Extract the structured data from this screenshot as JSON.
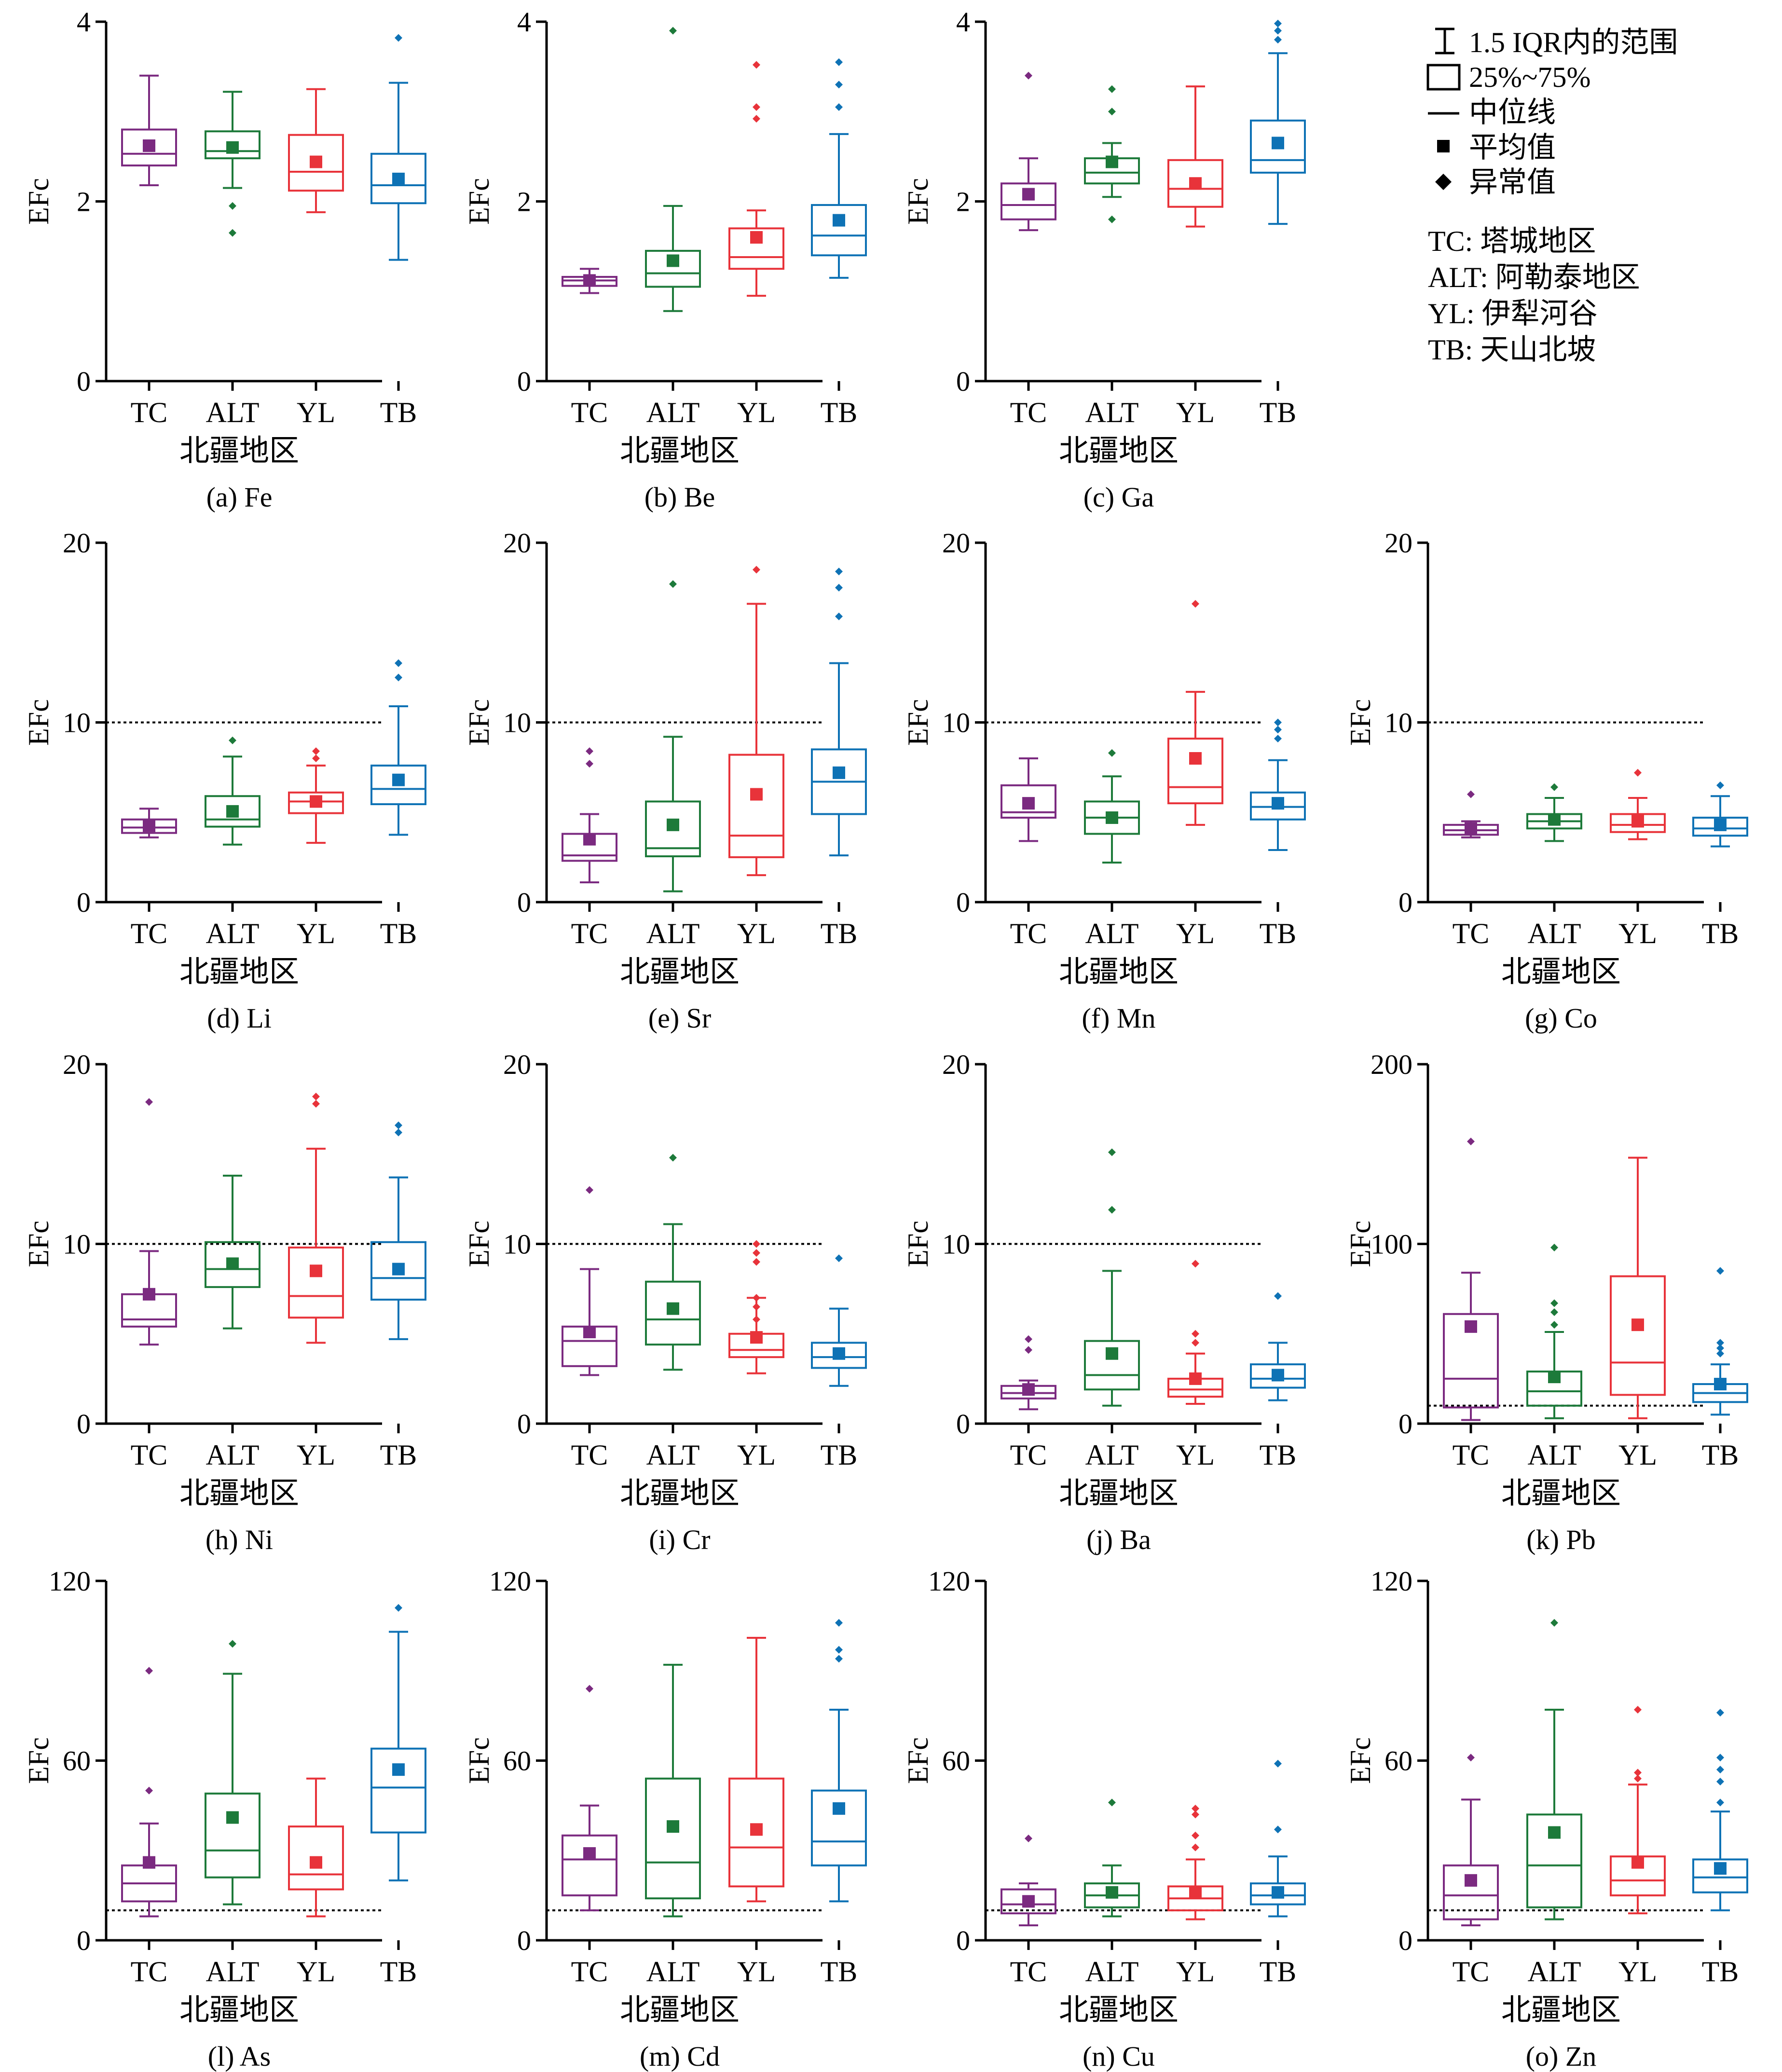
{
  "legend": {
    "whisker_label": "1.5 IQR内的范围",
    "box_label": "25%~75%",
    "median_label": "中位线",
    "mean_label": "平均值",
    "outlier_label": "异常值",
    "region_notes": [
      "TC: 塔城地区",
      "ALT: 阿勒泰地区",
      "YL: 伊犁河谷",
      "TB: 天山北坡"
    ]
  },
  "colors": {
    "TC": "#7b2a80",
    "ALT": "#1d7a3a",
    "YL": "#e8333a",
    "TB": "#0e72b5"
  },
  "chart_data": [
    {
      "type": "box",
      "caption": "(a) Fe",
      "xlabel": "北疆地区",
      "ylabel": "EFc",
      "ylim": [
        0,
        4
      ],
      "yticks": [
        0,
        2,
        4
      ],
      "reference_line": null,
      "categories": [
        "TC",
        "ALT",
        "YL",
        "TB"
      ],
      "boxes": [
        {
          "whisker_low": 2.18,
          "q1": 2.4,
          "median": 2.53,
          "q3": 2.8,
          "whisker_high": 3.4,
          "mean": 2.62,
          "outliers": []
        },
        {
          "whisker_low": 2.15,
          "q1": 2.48,
          "median": 2.56,
          "q3": 2.78,
          "whisker_high": 3.22,
          "mean": 2.6,
          "outliers": [
            1.95,
            1.65
          ]
        },
        {
          "whisker_low": 1.88,
          "q1": 2.12,
          "median": 2.33,
          "q3": 2.74,
          "whisker_high": 3.25,
          "mean": 2.44,
          "outliers": []
        },
        {
          "whisker_low": 1.35,
          "q1": 1.98,
          "median": 2.18,
          "q3": 2.53,
          "whisker_high": 3.32,
          "mean": 2.25,
          "outliers": [
            3.82
          ]
        }
      ]
    },
    {
      "type": "box",
      "caption": "(b) Be",
      "xlabel": "北疆地区",
      "ylabel": "EFc",
      "ylim": [
        0,
        4
      ],
      "yticks": [
        0,
        2,
        4
      ],
      "reference_line": null,
      "categories": [
        "TC",
        "ALT",
        "YL",
        "TB"
      ],
      "boxes": [
        {
          "whisker_low": 0.98,
          "q1": 1.06,
          "median": 1.12,
          "q3": 1.16,
          "whisker_high": 1.25,
          "mean": 1.12,
          "outliers": []
        },
        {
          "whisker_low": 0.78,
          "q1": 1.05,
          "median": 1.2,
          "q3": 1.45,
          "whisker_high": 1.95,
          "mean": 1.34,
          "outliers": [
            3.9
          ]
        },
        {
          "whisker_low": 0.95,
          "q1": 1.25,
          "median": 1.38,
          "q3": 1.7,
          "whisker_high": 1.9,
          "mean": 1.6,
          "outliers": [
            3.52,
            3.05,
            2.92
          ]
        },
        {
          "whisker_low": 1.15,
          "q1": 1.4,
          "median": 1.62,
          "q3": 1.96,
          "whisker_high": 2.75,
          "mean": 1.79,
          "outliers": [
            3.55,
            3.3,
            3.05
          ]
        }
      ]
    },
    {
      "type": "box",
      "caption": "(c) Ga",
      "xlabel": "北疆地区",
      "ylabel": "EFc",
      "ylim": [
        0,
        4
      ],
      "yticks": [
        0,
        2,
        4
      ],
      "reference_line": null,
      "categories": [
        "TC",
        "ALT",
        "YL",
        "TB"
      ],
      "boxes": [
        {
          "whisker_low": 1.68,
          "q1": 1.8,
          "median": 1.96,
          "q3": 2.2,
          "whisker_high": 2.48,
          "mean": 2.08,
          "outliers": [
            3.4
          ]
        },
        {
          "whisker_low": 2.05,
          "q1": 2.2,
          "median": 2.32,
          "q3": 2.48,
          "whisker_high": 2.65,
          "mean": 2.44,
          "outliers": [
            3.25,
            3.0,
            1.8
          ]
        },
        {
          "whisker_low": 1.72,
          "q1": 1.94,
          "median": 2.14,
          "q3": 2.46,
          "whisker_high": 3.28,
          "mean": 2.2,
          "outliers": []
        },
        {
          "whisker_low": 1.75,
          "q1": 2.32,
          "median": 2.46,
          "q3": 2.9,
          "whisker_high": 3.65,
          "mean": 2.65,
          "outliers": [
            3.98,
            3.9,
            3.8
          ]
        }
      ]
    },
    {
      "type": "box",
      "caption": "(d) Li",
      "xlabel": "北疆地区",
      "ylabel": "EFc",
      "ylim": [
        0,
        20
      ],
      "yticks": [
        0,
        10,
        20
      ],
      "reference_line": 10,
      "categories": [
        "TC",
        "ALT",
        "YL",
        "TB"
      ],
      "boxes": [
        {
          "whisker_low": 3.6,
          "q1": 3.85,
          "median": 4.15,
          "q3": 4.6,
          "whisker_high": 5.2,
          "mean": 4.25,
          "outliers": []
        },
        {
          "whisker_low": 3.2,
          "q1": 4.2,
          "median": 4.6,
          "q3": 5.9,
          "whisker_high": 8.1,
          "mean": 5.05,
          "outliers": [
            9.0
          ]
        },
        {
          "whisker_low": 3.3,
          "q1": 4.95,
          "median": 5.6,
          "q3": 6.1,
          "whisker_high": 7.6,
          "mean": 5.6,
          "outliers": [
            8.4,
            8.0
          ]
        },
        {
          "whisker_low": 3.75,
          "q1": 5.45,
          "median": 6.3,
          "q3": 7.6,
          "whisker_high": 10.9,
          "mean": 6.8,
          "outliers": [
            13.3,
            12.5
          ]
        }
      ]
    },
    {
      "type": "box",
      "caption": "(e) Sr",
      "xlabel": "北疆地区",
      "ylabel": "EFc",
      "ylim": [
        0,
        20
      ],
      "yticks": [
        0,
        10,
        20
      ],
      "reference_line": 10,
      "categories": [
        "TC",
        "ALT",
        "YL",
        "TB"
      ],
      "boxes": [
        {
          "whisker_low": 1.1,
          "q1": 2.3,
          "median": 2.6,
          "q3": 3.8,
          "whisker_high": 4.9,
          "mean": 3.5,
          "outliers": [
            8.4,
            7.7
          ]
        },
        {
          "whisker_low": 0.6,
          "q1": 2.55,
          "median": 3.0,
          "q3": 5.6,
          "whisker_high": 9.2,
          "mean": 4.3,
          "outliers": [
            17.7
          ]
        },
        {
          "whisker_low": 1.5,
          "q1": 2.5,
          "median": 3.7,
          "q3": 8.2,
          "whisker_high": 16.6,
          "mean": 6.0,
          "outliers": [
            18.5
          ]
        },
        {
          "whisker_low": 2.6,
          "q1": 4.9,
          "median": 6.7,
          "q3": 8.5,
          "whisker_high": 13.3,
          "mean": 7.2,
          "outliers": [
            18.4,
            17.5,
            15.9
          ]
        }
      ]
    },
    {
      "type": "box",
      "caption": "(f) Mn",
      "xlabel": "北疆地区",
      "ylabel": "EFc",
      "ylim": [
        0,
        20
      ],
      "yticks": [
        0,
        10,
        20
      ],
      "reference_line": 10,
      "categories": [
        "TC",
        "ALT",
        "YL",
        "TB"
      ],
      "boxes": [
        {
          "whisker_low": 3.4,
          "q1": 4.7,
          "median": 5.0,
          "q3": 6.5,
          "whisker_high": 8.0,
          "mean": 5.5,
          "outliers": []
        },
        {
          "whisker_low": 2.2,
          "q1": 3.8,
          "median": 4.7,
          "q3": 5.6,
          "whisker_high": 7.0,
          "mean": 4.7,
          "outliers": [
            8.3
          ]
        },
        {
          "whisker_low": 4.3,
          "q1": 5.5,
          "median": 6.4,
          "q3": 9.1,
          "whisker_high": 11.7,
          "mean": 8.0,
          "outliers": [
            16.6
          ]
        },
        {
          "whisker_low": 2.9,
          "q1": 4.6,
          "median": 5.3,
          "q3": 6.1,
          "whisker_high": 7.9,
          "mean": 5.5,
          "outliers": [
            10.0,
            9.6,
            9.1
          ]
        }
      ]
    },
    {
      "type": "box",
      "caption": "(g) Co",
      "xlabel": "北疆地区",
      "ylabel": "EFc",
      "ylim": [
        0,
        20
      ],
      "yticks": [
        0,
        10,
        20
      ],
      "reference_line": 10,
      "categories": [
        "TC",
        "ALT",
        "YL",
        "TB"
      ],
      "boxes": [
        {
          "whisker_low": 3.6,
          "q1": 3.75,
          "median": 4.0,
          "q3": 4.3,
          "whisker_high": 4.5,
          "mean": 4.1,
          "outliers": [
            6.0
          ]
        },
        {
          "whisker_low": 3.4,
          "q1": 4.1,
          "median": 4.5,
          "q3": 4.9,
          "whisker_high": 5.8,
          "mean": 4.6,
          "outliers": [
            6.4
          ]
        },
        {
          "whisker_low": 3.5,
          "q1": 3.9,
          "median": 4.3,
          "q3": 4.9,
          "whisker_high": 5.8,
          "mean": 4.5,
          "outliers": [
            7.2
          ]
        },
        {
          "whisker_low": 3.1,
          "q1": 3.7,
          "median": 4.1,
          "q3": 4.7,
          "whisker_high": 5.9,
          "mean": 4.3,
          "outliers": [
            6.5
          ]
        }
      ]
    },
    {
      "type": "box",
      "caption": "(h) Ni",
      "xlabel": "北疆地区",
      "ylabel": "EFc",
      "ylim": [
        0,
        20
      ],
      "yticks": [
        0,
        10,
        20
      ],
      "reference_line": 10,
      "categories": [
        "TC",
        "ALT",
        "YL",
        "TB"
      ],
      "boxes": [
        {
          "whisker_low": 4.4,
          "q1": 5.4,
          "median": 5.8,
          "q3": 7.2,
          "whisker_high": 9.6,
          "mean": 7.2,
          "outliers": [
            17.9
          ]
        },
        {
          "whisker_low": 5.3,
          "q1": 7.6,
          "median": 8.6,
          "q3": 10.1,
          "whisker_high": 13.8,
          "mean": 8.9,
          "outliers": []
        },
        {
          "whisker_low": 4.5,
          "q1": 5.9,
          "median": 7.1,
          "q3": 9.8,
          "whisker_high": 15.3,
          "mean": 8.5,
          "outliers": [
            18.2,
            17.8
          ]
        },
        {
          "whisker_low": 4.7,
          "q1": 6.9,
          "median": 8.1,
          "q3": 10.1,
          "whisker_high": 13.7,
          "mean": 8.6,
          "outliers": [
            16.6,
            16.2
          ]
        }
      ]
    },
    {
      "type": "box",
      "caption": "(i) Cr",
      "xlabel": "北疆地区",
      "ylabel": "EFc",
      "ylim": [
        0,
        20
      ],
      "yticks": [
        0,
        10,
        20
      ],
      "reference_line": 10,
      "categories": [
        "TC",
        "ALT",
        "YL",
        "TB"
      ],
      "boxes": [
        {
          "whisker_low": 2.7,
          "q1": 3.2,
          "median": 4.6,
          "q3": 5.4,
          "whisker_high": 8.6,
          "mean": 5.1,
          "outliers": [
            13.0
          ]
        },
        {
          "whisker_low": 3.0,
          "q1": 4.4,
          "median": 5.8,
          "q3": 7.9,
          "whisker_high": 11.1,
          "mean": 6.4,
          "outliers": [
            14.8
          ]
        },
        {
          "whisker_low": 2.8,
          "q1": 3.7,
          "median": 4.1,
          "q3": 5.0,
          "whisker_high": 7.0,
          "mean": 4.8,
          "outliers": [
            10.0,
            9.5,
            9.0,
            7.0,
            6.5,
            5.8
          ]
        },
        {
          "whisker_low": 2.1,
          "q1": 3.1,
          "median": 3.7,
          "q3": 4.5,
          "whisker_high": 6.4,
          "mean": 3.9,
          "outliers": [
            9.2
          ]
        }
      ]
    },
    {
      "type": "box",
      "caption": "(j) Ba",
      "xlabel": "北疆地区",
      "ylabel": "EFc",
      "ylim": [
        0,
        20
      ],
      "yticks": [
        0,
        10,
        20
      ],
      "reference_line": 10,
      "categories": [
        "TC",
        "ALT",
        "YL",
        "TB"
      ],
      "boxes": [
        {
          "whisker_low": 0.8,
          "q1": 1.4,
          "median": 1.7,
          "q3": 2.1,
          "whisker_high": 2.4,
          "mean": 1.9,
          "outliers": [
            4.7,
            4.1
          ]
        },
        {
          "whisker_low": 1.0,
          "q1": 1.9,
          "median": 2.7,
          "q3": 4.6,
          "whisker_high": 8.5,
          "mean": 3.9,
          "outliers": [
            15.1,
            11.9
          ]
        },
        {
          "whisker_low": 1.1,
          "q1": 1.5,
          "median": 1.9,
          "q3": 2.5,
          "whisker_high": 3.9,
          "mean": 2.5,
          "outliers": [
            8.9,
            5.0,
            4.5
          ]
        },
        {
          "whisker_low": 1.3,
          "q1": 2.0,
          "median": 2.5,
          "q3": 3.3,
          "whisker_high": 4.5,
          "mean": 2.7,
          "outliers": [
            7.1
          ]
        }
      ]
    },
    {
      "type": "box",
      "caption": "(k) Pb",
      "xlabel": "北疆地区",
      "ylabel": "EFc",
      "ylim": [
        0,
        200
      ],
      "yticks": [
        0,
        100,
        200
      ],
      "reference_line": 10,
      "categories": [
        "TC",
        "ALT",
        "YL",
        "TB"
      ],
      "boxes": [
        {
          "whisker_low": 2,
          "q1": 9,
          "median": 25,
          "q3": 61,
          "whisker_high": 84,
          "mean": 54,
          "outliers": [
            157
          ]
        },
        {
          "whisker_low": 3,
          "q1": 10,
          "median": 18,
          "q3": 29,
          "whisker_high": 51,
          "mean": 26,
          "outliers": [
            98,
            67,
            62,
            55
          ]
        },
        {
          "whisker_low": 3,
          "q1": 16,
          "median": 34,
          "q3": 82,
          "whisker_high": 148,
          "mean": 55,
          "outliers": []
        },
        {
          "whisker_low": 5,
          "q1": 12,
          "median": 17,
          "q3": 22,
          "whisker_high": 33,
          "mean": 22,
          "outliers": [
            85,
            45,
            42,
            39
          ]
        }
      ]
    },
    {
      "type": "box",
      "caption": "(l) As",
      "xlabel": "北疆地区",
      "ylabel": "EFc",
      "ylim": [
        0,
        120
      ],
      "yticks": [
        0,
        60,
        120
      ],
      "reference_line": 10,
      "categories": [
        "TC",
        "ALT",
        "YL",
        "TB"
      ],
      "boxes": [
        {
          "whisker_low": 8,
          "q1": 13,
          "median": 19,
          "q3": 25,
          "whisker_high": 39,
          "mean": 26,
          "outliers": [
            90,
            50
          ]
        },
        {
          "whisker_low": 12,
          "q1": 21,
          "median": 30,
          "q3": 49,
          "whisker_high": 89,
          "mean": 41,
          "outliers": [
            99
          ]
        },
        {
          "whisker_low": 8,
          "q1": 17,
          "median": 22,
          "q3": 38,
          "whisker_high": 54,
          "mean": 26,
          "outliers": []
        },
        {
          "whisker_low": 20,
          "q1": 36,
          "median": 51,
          "q3": 64,
          "whisker_high": 103,
          "mean": 57,
          "outliers": [
            111
          ]
        }
      ]
    },
    {
      "type": "box",
      "caption": "(m) Cd",
      "xlabel": "北疆地区",
      "ylabel": "EFc",
      "ylim": [
        0,
        120
      ],
      "yticks": [
        0,
        60,
        120
      ],
      "reference_line": 10,
      "categories": [
        "TC",
        "ALT",
        "YL",
        "TB"
      ],
      "boxes": [
        {
          "whisker_low": 10,
          "q1": 15,
          "median": 27,
          "q3": 35,
          "whisker_high": 45,
          "mean": 29,
          "outliers": [
            84
          ]
        },
        {
          "whisker_low": 8,
          "q1": 14,
          "median": 26,
          "q3": 54,
          "whisker_high": 92,
          "mean": 38,
          "outliers": []
        },
        {
          "whisker_low": 13,
          "q1": 18,
          "median": 31,
          "q3": 54,
          "whisker_high": 101,
          "mean": 37,
          "outliers": []
        },
        {
          "whisker_low": 13,
          "q1": 25,
          "median": 33,
          "q3": 50,
          "whisker_high": 77,
          "mean": 44,
          "outliers": [
            106,
            97,
            94
          ]
        }
      ]
    },
    {
      "type": "box",
      "caption": "(n) Cu",
      "xlabel": "北疆地区",
      "ylabel": "EFc",
      "ylim": [
        0,
        120
      ],
      "yticks": [
        0,
        60,
        120
      ],
      "reference_line": 10,
      "categories": [
        "TC",
        "ALT",
        "YL",
        "TB"
      ],
      "boxes": [
        {
          "whisker_low": 5,
          "q1": 9,
          "median": 12,
          "q3": 17,
          "whisker_high": 19,
          "mean": 13,
          "outliers": [
            34
          ]
        },
        {
          "whisker_low": 8,
          "q1": 11,
          "median": 15,
          "q3": 19,
          "whisker_high": 25,
          "mean": 16,
          "outliers": [
            46
          ]
        },
        {
          "whisker_low": 7,
          "q1": 10,
          "median": 14,
          "q3": 18,
          "whisker_high": 27,
          "mean": 16,
          "outliers": [
            44,
            42,
            35,
            31
          ]
        },
        {
          "whisker_low": 8,
          "q1": 12,
          "median": 15,
          "q3": 19,
          "whisker_high": 28,
          "mean": 16,
          "outliers": [
            59,
            37
          ]
        }
      ]
    },
    {
      "type": "box",
      "caption": "(o) Zn",
      "xlabel": "北疆地区",
      "ylabel": "EFc",
      "ylim": [
        0,
        120
      ],
      "yticks": [
        0,
        60,
        120
      ],
      "reference_line": 10,
      "categories": [
        "TC",
        "ALT",
        "YL",
        "TB"
      ],
      "boxes": [
        {
          "whisker_low": 5,
          "q1": 7,
          "median": 15,
          "q3": 25,
          "whisker_high": 47,
          "mean": 20,
          "outliers": [
            61
          ]
        },
        {
          "whisker_low": 7,
          "q1": 11,
          "median": 25,
          "q3": 42,
          "whisker_high": 77,
          "mean": 36,
          "outliers": [
            106
          ]
        },
        {
          "whisker_low": 9,
          "q1": 15,
          "median": 20,
          "q3": 28,
          "whisker_high": 52,
          "mean": 26,
          "outliers": [
            77,
            56,
            54
          ]
        },
        {
          "whisker_low": 10,
          "q1": 16,
          "median": 21,
          "q3": 27,
          "whisker_high": 43,
          "mean": 24,
          "outliers": [
            76,
            61,
            57,
            53,
            46
          ]
        }
      ]
    }
  ]
}
